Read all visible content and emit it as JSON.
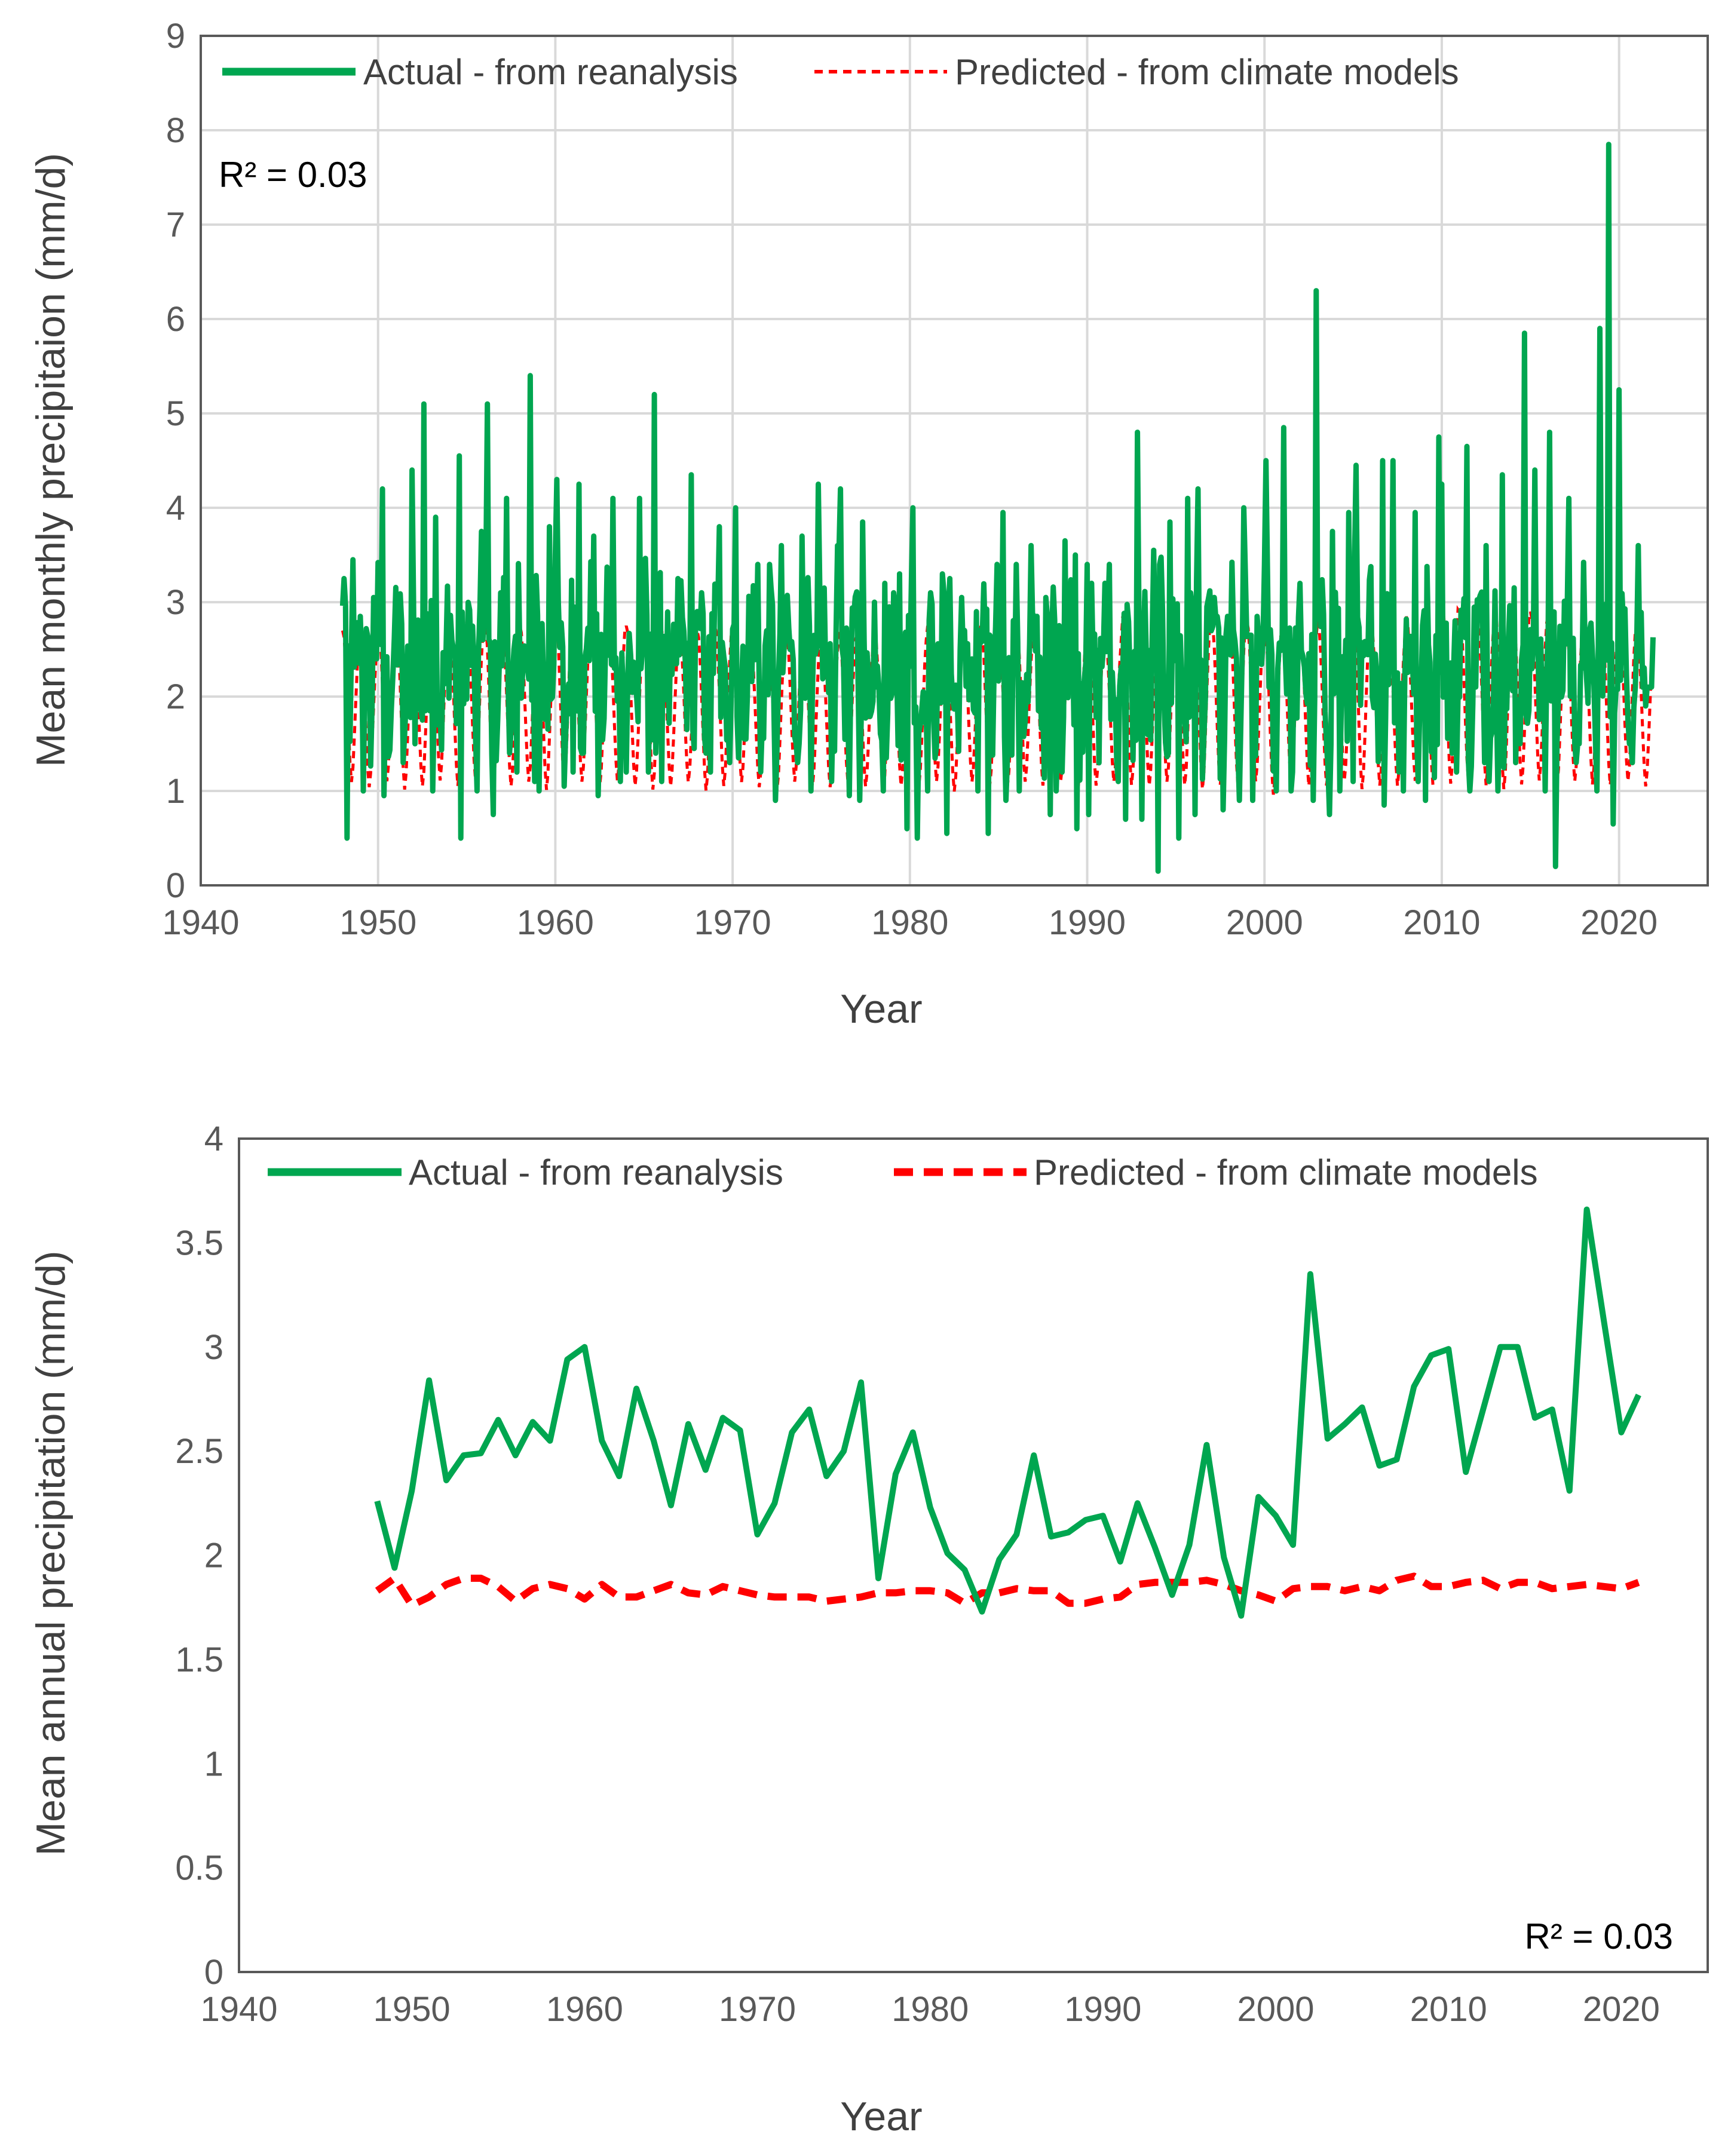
{
  "colors": {
    "actual": "#00a650",
    "predicted": "#ff0000",
    "grid": "#d9d9d9",
    "frame": "#595959"
  },
  "chart_data": [
    {
      "type": "line",
      "title": "",
      "xlabel": "Year",
      "ylabel": "Mean monthly  precipitaion (mm/d)",
      "xlim": [
        1940,
        2025
      ],
      "ylim": [
        0,
        9
      ],
      "xticks": [
        "1940",
        "1950",
        "1960",
        "1970",
        "1980",
        "1990",
        "2000",
        "2010",
        "2020"
      ],
      "yticks": [
        "0",
        "1",
        "2",
        "3",
        "4",
        "5",
        "6",
        "7",
        "8",
        "9"
      ],
      "grid": true,
      "legend": {
        "position": "top",
        "entries": [
          "Actual - from reanalysis",
          "Predicted - from climate models"
        ]
      },
      "annotation": "R² = 0.03",
      "annotation_position": "top-left",
      "series": [
        {
          "name": "Actual - from reanalysis",
          "style": "solid",
          "note": "monthly series 1948-2021; values below are annual envelope (max/min) read from the plot",
          "years": [
            1948,
            1949,
            1950,
            1951,
            1952,
            1953,
            1954,
            1955,
            1956,
            1957,
            1958,
            1959,
            1960,
            1961,
            1962,
            1963,
            1964,
            1965,
            1966,
            1967,
            1968,
            1969,
            1970,
            1971,
            1972,
            1973,
            1974,
            1975,
            1976,
            1977,
            1978,
            1979,
            1980,
            1981,
            1982,
            1983,
            1984,
            1985,
            1986,
            1987,
            1988,
            1989,
            1990,
            1991,
            1992,
            1993,
            1994,
            1995,
            1996,
            1997,
            1998,
            1999,
            2000,
            2001,
            2002,
            2003,
            2004,
            2005,
            2006,
            2007,
            2008,
            2009,
            2010,
            2011,
            2012,
            2013,
            2014,
            2015,
            2016,
            2017,
            2018,
            2019,
            2020,
            2021
          ],
          "max": [
            3.45,
            3.05,
            4.2,
            4.4,
            5.1,
            3.9,
            4.55,
            3.75,
            5.1,
            4.1,
            5.4,
            3.8,
            4.3,
            4.25,
            3.7,
            4.1,
            4.1,
            5.2,
            3.25,
            4.35,
            3.1,
            3.8,
            4.0,
            3.4,
            3.6,
            3.7,
            4.25,
            3.6,
            4.2,
            3.85,
            3.2,
            3.3,
            4.0,
            3.3,
            3.25,
            2.9,
            3.4,
            3.95,
            3.6,
            3.05,
            3.65,
            3.5,
            3.4,
            3.4,
            4.8,
            3.55,
            3.85,
            4.1,
            4.2,
            3.05,
            4.0,
            2.85,
            4.5,
            4.85,
            6.3,
            3.75,
            3.95,
            4.45,
            4.5,
            4.5,
            3.95,
            4.75,
            4.25,
            4.65,
            3.6,
            4.35,
            5.85,
            4.4,
            4.8,
            4.1,
            5.9,
            7.85,
            5.25,
            3.6
          ],
          "min": [
            0.5,
            1.0,
            0.95,
            1.3,
            1.5,
            1.0,
            0.5,
            1.0,
            0.75,
            1.2,
            1.1,
            1.0,
            1.05,
            1.2,
            0.95,
            1.1,
            1.2,
            1.2,
            1.1,
            1.45,
            1.2,
            1.3,
            1.35,
            1.2,
            0.9,
            1.3,
            1.0,
            1.1,
            0.95,
            0.9,
            1.0,
            0.6,
            0.5,
            1.0,
            0.55,
            1.0,
            0.55,
            0.9,
            1.0,
            0.75,
            1.0,
            0.6,
            0.75,
            1.1,
            0.7,
            0.7,
            0.15,
            0.5,
            0.75,
            0.8,
            0.9,
            0.9,
            1.0,
            1.0,
            0.9,
            0.75,
            1.0,
            1.1,
            0.85,
            1.0,
            1.1,
            0.9,
            1.2,
            1.0,
            1.1,
            1.0,
            1.3,
            1.0,
            0.2,
            1.3,
            1.0,
            0.65,
            1.3,
            1.9
          ]
        },
        {
          "name": "Predicted - from climate models",
          "style": "dashed",
          "note": "monthly seasonal cycle, annual envelope",
          "max": [
            2.7,
            2.6,
            2.8,
            2.85,
            2.7,
            2.9,
            2.75,
            2.8,
            2.85,
            2.7,
            2.75,
            2.8,
            2.9,
            2.75,
            2.7,
            2.8,
            2.75,
            2.85,
            2.7,
            2.65,
            2.7,
            2.75,
            2.7,
            2.6,
            2.7,
            2.75,
            2.7,
            2.6,
            2.7,
            2.65,
            2.7,
            2.75,
            2.7,
            2.75,
            2.6,
            2.7,
            2.75,
            2.7,
            2.75,
            2.8,
            2.7,
            2.75,
            2.8,
            2.7,
            2.85,
            2.8,
            2.75,
            2.85,
            2.9,
            2.85,
            2.9,
            2.8,
            2.75,
            2.7,
            2.75,
            2.8,
            2.85,
            2.9,
            2.8,
            2.75,
            2.85,
            2.9,
            3.05,
            2.9,
            2.85,
            2.9,
            2.95,
            2.9,
            2.85,
            2.8,
            2.95,
            2.85,
            2.8,
            2.7
          ],
          "min": [
            0.95,
            0.9,
            0.95,
            0.85,
            0.9,
            0.95,
            0.9,
            0.95,
            0.9,
            0.9,
            0.95,
            0.85,
            0.9,
            0.95,
            0.9,
            0.95,
            0.9,
            0.85,
            0.9,
            0.95,
            0.85,
            0.9,
            0.95,
            0.9,
            0.85,
            0.95,
            0.9,
            0.9,
            0.95,
            0.9,
            0.85,
            0.9,
            0.9,
            0.95,
            0.85,
            0.95,
            0.9,
            0.9,
            0.95,
            0.9,
            0.95,
            0.9,
            0.9,
            0.95,
            0.9,
            0.9,
            0.95,
            0.9,
            0.85,
            0.9,
            0.9,
            0.95,
            0.8,
            0.95,
            0.9,
            0.9,
            0.95,
            0.85,
            0.9,
            0.9,
            0.95,
            0.9,
            0.9,
            0.95,
            0.9,
            0.85,
            0.9,
            0.95,
            0.9,
            0.95,
            0.9,
            0.9,
            0.95,
            0.9
          ]
        }
      ]
    },
    {
      "type": "line",
      "title": "",
      "xlabel": "Year",
      "ylabel": "Mean annual precipitation (mm/d)",
      "xlim": [
        1940,
        2025
      ],
      "ylim": [
        0,
        4
      ],
      "xticks": [
        "1940",
        "1950",
        "1960",
        "1970",
        "1980",
        "1990",
        "2000",
        "2010",
        "2020"
      ],
      "yticks": [
        "0",
        "0.5",
        "1",
        "1.5",
        "2",
        "2.5",
        "3",
        "3.5",
        "4"
      ],
      "grid": false,
      "legend": {
        "position": "top",
        "entries": [
          "Actual - from reanalysis",
          "Predicted - from climate models"
        ]
      },
      "annotation": "R² = 0.03",
      "annotation_position": "bottom-right",
      "x": [
        1948,
        1949,
        1950,
        1951,
        1952,
        1953,
        1954,
        1955,
        1956,
        1957,
        1958,
        1959,
        1960,
        1961,
        1962,
        1963,
        1964,
        1965,
        1966,
        1967,
        1968,
        1969,
        1970,
        1971,
        1972,
        1973,
        1974,
        1975,
        1976,
        1977,
        1978,
        1979,
        1980,
        1981,
        1982,
        1983,
        1984,
        1985,
        1986,
        1987,
        1988,
        1989,
        1990,
        1991,
        1992,
        1993,
        1994,
        1995,
        1996,
        1997,
        1998,
        1999,
        2000,
        2001,
        2002,
        2003,
        2004,
        2005,
        2006,
        2007,
        2008,
        2009,
        2010,
        2011,
        2012,
        2013,
        2014,
        2015,
        2016,
        2017,
        2018,
        2019,
        2020,
        2021
      ],
      "series": [
        {
          "name": "Actual - from reanalysis",
          "style": "solid",
          "values": [
            2.26,
            1.94,
            2.31,
            2.84,
            2.36,
            2.48,
            2.49,
            2.65,
            2.48,
            2.64,
            2.55,
            2.94,
            3.0,
            2.55,
            2.38,
            2.8,
            2.55,
            2.24,
            2.63,
            2.41,
            2.66,
            2.6,
            2.1,
            2.25,
            2.59,
            2.7,
            2.38,
            2.5,
            2.83,
            1.89,
            2.39,
            2.59,
            2.23,
            2.01,
            1.93,
            1.73,
            1.98,
            2.1,
            2.48,
            2.09,
            2.11,
            2.17,
            2.19,
            1.97,
            2.25,
            2.04,
            1.81,
            2.05,
            2.53,
            1.99,
            1.71,
            2.28,
            2.19,
            2.05,
            3.35,
            2.56,
            2.63,
            2.71,
            2.43,
            2.46,
            2.81,
            2.96,
            2.99,
            2.4,
            2.7,
            3.0,
            3.0,
            2.66,
            2.7,
            2.31,
            3.66,
            3.12,
            2.59,
            2.77
          ]
        },
        {
          "name": "Predicted - from climate models",
          "style": "dashed",
          "values": [
            1.83,
            1.89,
            1.76,
            1.8,
            1.86,
            1.89,
            1.89,
            1.85,
            1.78,
            1.84,
            1.86,
            1.84,
            1.79,
            1.86,
            1.8,
            1.8,
            1.83,
            1.86,
            1.82,
            1.81,
            1.85,
            1.83,
            1.81,
            1.8,
            1.8,
            1.8,
            1.78,
            1.79,
            1.8,
            1.82,
            1.82,
            1.83,
            1.83,
            1.82,
            1.77,
            1.82,
            1.82,
            1.84,
            1.83,
            1.83,
            1.77,
            1.77,
            1.79,
            1.8,
            1.86,
            1.87,
            1.87,
            1.87,
            1.88,
            1.86,
            1.83,
            1.81,
            1.78,
            1.84,
            1.85,
            1.85,
            1.83,
            1.85,
            1.83,
            1.88,
            1.9,
            1.85,
            1.85,
            1.87,
            1.88,
            1.84,
            1.87,
            1.87,
            1.84,
            1.85,
            1.86,
            1.85,
            1.84,
            1.87
          ]
        }
      ]
    }
  ]
}
